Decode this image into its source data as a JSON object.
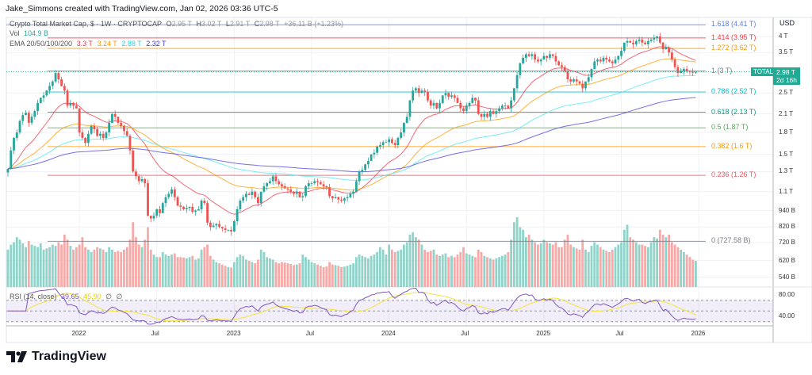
{
  "header": {
    "credit": "Jake_Simmons created with TradingView.com, Jan 02, 2026 03:36 UTC-5"
  },
  "legend": {
    "symbol": "Crypto Total Market Cap, $ · 1W · CRYPTOCAP",
    "open_label": "O",
    "open": "2.95 T",
    "high_label": "H",
    "high": "3.02 T",
    "low_label": "L",
    "low": "2.91 T",
    "close_label": "C",
    "close": "2.98 T",
    "change": "+36.11 B (+1.23%)",
    "vol_label": "Vol",
    "vol": "104.9 B",
    "ema_label": "EMA 20/50/100/200",
    "ema_values": [
      "3.3 T",
      "3.24 T",
      "2.88 T",
      "2.32 T"
    ],
    "rsi_label": "RSI (14, close)",
    "rsi": "39.65",
    "rsi_ma": "45.90",
    "rsi_icons": [
      "∅",
      "∅"
    ]
  },
  "price_axis": {
    "currency": "USD",
    "ticks": [
      {
        "label": "4 T",
        "value": 4.0
      },
      {
        "label": "3.5 T",
        "value": 3.5
      },
      {
        "label": "2.5 T",
        "value": 2.5
      },
      {
        "label": "2.1 T",
        "value": 2.1
      },
      {
        "label": "1.8 T",
        "value": 1.8
      },
      {
        "label": "1.5 T",
        "value": 1.5
      },
      {
        "label": "1.3 T",
        "value": 1.3
      },
      {
        "label": "1.1 T",
        "value": 1.1
      },
      {
        "label": "940 B",
        "value": 0.94
      },
      {
        "label": "820 B",
        "value": 0.82
      },
      {
        "label": "720 B",
        "value": 0.72
      },
      {
        "label": "620 B",
        "value": 0.62
      },
      {
        "label": "540 B",
        "value": 0.54
      }
    ],
    "rsi_ticks": [
      {
        "label": "80.00",
        "value": 80
      },
      {
        "label": "40.00",
        "value": 40
      }
    ],
    "badge_symbol": "TOTAL",
    "badge_price": "2.98 T",
    "badge_countdown": "2d 16h"
  },
  "fib_levels": [
    {
      "label": "1.618 (4.41 T)",
      "value": 4.41,
      "color": "#5b7ce9"
    },
    {
      "label": "1.414 (3.95 T)",
      "value": 3.95,
      "color": "#f23645"
    },
    {
      "label": "1.272 (3.62 T)",
      "value": 3.62,
      "color": "#ff9800"
    },
    {
      "label": "1 (3 T)",
      "value": 3.0,
      "color": "#787b86"
    },
    {
      "label": "0.786 (2.52 T)",
      "value": 2.52,
      "color": "#00bcd4"
    },
    {
      "label": "0.618 (2.13 T)",
      "value": 2.13,
      "color": "#089981"
    },
    {
      "label": "0.5 (1.87 T)",
      "value": 1.87,
      "color": "#4caf50"
    },
    {
      "label": "0.382 (1.6 T)",
      "value": 1.6,
      "color": "#ff9800"
    },
    {
      "label": "0.236 (1.26 T)",
      "value": 1.26,
      "color": "#f7525f"
    },
    {
      "label": "0 (727.58 B)",
      "value": 0.72758,
      "color": "#787b86"
    }
  ],
  "colors": {
    "up": "#26a69a",
    "down": "#ef5350",
    "vol_up": "#8fd3c9",
    "vol_down": "#f7a9a7",
    "ema20": "#f23645",
    "ema50": "#ff9800",
    "ema100": "#4ce6f0",
    "ema200": "#4b3fe0",
    "rsi": "#7e57c2",
    "rsi_ma": "#f5e43a",
    "badge": "#22ab94"
  },
  "brand": {
    "name": "TradingView"
  },
  "chart_data": {
    "type": "candlestick",
    "interval": "1W",
    "y_scale": "log",
    "x_ticks": [
      {
        "label": "2022",
        "date": "2022-01-03"
      },
      {
        "label": "Jul",
        "date": "2022-07-04"
      },
      {
        "label": "2023",
        "date": "2023-01-02"
      },
      {
        "label": "Jul",
        "date": "2023-07-03"
      },
      {
        "label": "2024",
        "date": "2024-01-01"
      },
      {
        "label": "Jul",
        "date": "2024-07-01"
      },
      {
        "label": "2025",
        "date": "2024-12-30"
      },
      {
        "label": "Jul",
        "date": "2025-06-30"
      },
      {
        "label": "2026",
        "date": "2025-12-29"
      }
    ],
    "weekly_close_T": [
      1.33,
      1.55,
      1.72,
      1.8,
      1.98,
      2.08,
      2.12,
      1.95,
      2.05,
      2.15,
      2.3,
      2.4,
      2.45,
      2.55,
      2.65,
      2.75,
      2.95,
      2.8,
      2.65,
      2.55,
      2.25,
      2.3,
      2.25,
      2.2,
      1.8,
      1.72,
      1.65,
      1.78,
      1.9,
      1.85,
      1.75,
      1.78,
      1.72,
      1.8,
      1.95,
      2.1,
      2.05,
      1.95,
      1.9,
      1.82,
      1.75,
      1.55,
      1.3,
      1.25,
      1.2,
      1.22,
      1.18,
      0.9,
      0.88,
      0.9,
      0.95,
      0.92,
      1.0,
      1.05,
      1.08,
      1.12,
      1.05,
      0.98,
      0.97,
      0.95,
      0.96,
      0.97,
      0.93,
      0.94,
      0.95,
      1.02,
      1.0,
      0.85,
      0.82,
      0.83,
      0.84,
      0.82,
      0.81,
      0.8,
      0.8,
      0.79,
      0.86,
      0.95,
      1.02,
      1.05,
      1.08,
      1.07,
      1.1,
      1.05,
      1.0,
      1.1,
      1.15,
      1.18,
      1.2,
      1.25,
      1.2,
      1.17,
      1.15,
      1.13,
      1.12,
      1.1,
      1.08,
      1.1,
      1.05,
      1.06,
      1.15,
      1.18,
      1.18,
      1.2,
      1.19,
      1.17,
      1.15,
      1.14,
      1.06,
      1.04,
      1.05,
      1.03,
      1.02,
      1.04,
      1.05,
      1.08,
      1.1,
      1.2,
      1.3,
      1.32,
      1.38,
      1.42,
      1.5,
      1.52,
      1.6,
      1.62,
      1.66,
      1.66,
      1.7,
      1.65,
      1.62,
      1.72,
      1.8,
      1.95,
      2.05,
      2.35,
      2.55,
      2.6,
      2.5,
      2.55,
      2.52,
      2.35,
      2.25,
      2.3,
      2.2,
      2.3,
      2.45,
      2.5,
      2.42,
      2.45,
      2.4,
      2.3,
      2.2,
      2.15,
      2.25,
      2.3,
      2.4,
      2.35,
      2.1,
      2.05,
      2.1,
      2.05,
      2.15,
      2.1,
      2.15,
      2.2,
      2.25,
      2.25,
      2.2,
      2.35,
      2.6,
      2.9,
      3.2,
      3.35,
      3.45,
      3.4,
      3.45,
      3.3,
      3.25,
      3.3,
      3.4,
      3.35,
      3.45,
      3.4,
      3.25,
      3.15,
      3.1,
      3.0,
      2.8,
      2.75,
      2.8,
      2.75,
      2.7,
      2.6,
      2.75,
      2.85,
      3.05,
      3.25,
      3.3,
      3.25,
      3.35,
      3.3,
      3.25,
      3.2,
      3.3,
      3.4,
      3.55,
      3.8,
      3.85,
      3.8,
      3.75,
      3.85,
      3.9,
      3.8,
      3.75,
      3.85,
      3.9,
      3.95,
      4.0,
      3.8,
      3.6,
      3.65,
      3.5,
      3.3,
      3.1,
      2.95,
      3.0,
      3.05,
      3.0,
      2.98,
      2.96,
      2.98
    ],
    "weekly_volume_B": [
      150,
      170,
      180,
      200,
      190,
      175,
      160,
      185,
      170,
      165,
      160,
      175,
      150,
      155,
      160,
      170,
      165,
      180,
      170,
      210,
      190,
      165,
      150,
      160,
      170,
      200,
      160,
      150,
      140,
      150,
      160,
      155,
      150,
      140,
      160,
      150,
      140,
      145,
      140,
      150,
      160,
      190,
      260,
      200,
      170,
      160,
      190,
      240,
      150,
      130,
      120,
      120,
      140,
      130,
      125,
      130,
      135,
      120,
      120,
      118,
      115,
      120,
      125,
      110,
      115,
      150,
      160,
      170,
      125,
      110,
      100,
      95,
      90,
      85,
      80,
      78,
      100,
      120,
      130,
      125,
      110,
      105,
      100,
      95,
      110,
      150,
      140,
      120,
      115,
      110,
      100,
      95,
      100,
      98,
      95,
      92,
      88,
      90,
      95,
      130,
      120,
      110,
      100,
      95,
      90,
      85,
      80,
      82,
      100,
      90,
      88,
      85,
      80,
      82,
      85,
      90,
      95,
      120,
      130,
      125,
      120,
      115,
      125,
      130,
      140,
      160,
      150,
      130,
      170,
      150,
      140,
      145,
      150,
      170,
      180,
      210,
      220,
      200,
      190,
      170,
      150,
      140,
      145,
      150,
      130,
      125,
      130,
      135,
      120,
      125,
      120,
      130,
      140,
      160,
      135,
      130,
      125,
      120,
      150,
      140,
      125,
      120,
      115,
      110,
      115,
      120,
      125,
      130,
      140,
      190,
      260,
      280,
      240,
      230,
      200,
      210,
      190,
      180,
      170,
      175,
      190,
      180,
      175,
      170,
      180,
      160,
      160,
      190,
      210,
      170,
      160,
      155,
      150,
      190,
      150,
      140,
      165,
      180,
      170,
      160,
      150,
      145,
      140,
      150,
      160,
      170,
      180,
      230,
      250,
      200,
      190,
      180,
      170,
      170,
      165,
      160,
      180,
      200,
      195,
      230,
      210,
      200,
      210,
      180,
      170,
      160,
      150,
      140,
      130,
      120,
      110,
      104.9
    ],
    "last_close_T": 2.98,
    "rsi_levels": [
      70,
      50,
      30
    ]
  }
}
